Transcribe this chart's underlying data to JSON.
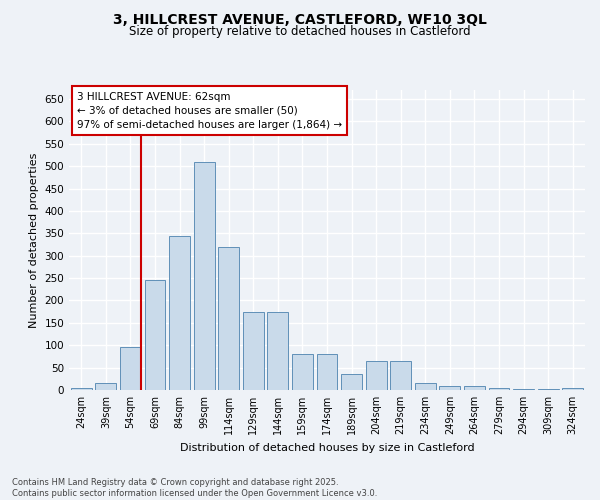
{
  "title_line1": "3, HILLCREST AVENUE, CASTLEFORD, WF10 3QL",
  "title_line2": "Size of property relative to detached houses in Castleford",
  "xlabel": "Distribution of detached houses by size in Castleford",
  "ylabel": "Number of detached properties",
  "categories": [
    "24sqm",
    "39sqm",
    "54sqm",
    "69sqm",
    "84sqm",
    "99sqm",
    "114sqm",
    "129sqm",
    "144sqm",
    "159sqm",
    "174sqm",
    "189sqm",
    "204sqm",
    "219sqm",
    "234sqm",
    "249sqm",
    "264sqm",
    "279sqm",
    "294sqm",
    "309sqm",
    "324sqm"
  ],
  "values": [
    5,
    15,
    95,
    245,
    345,
    510,
    320,
    175,
    175,
    80,
    80,
    35,
    65,
    65,
    15,
    10,
    8,
    5,
    2,
    2,
    5
  ],
  "bar_color": "#c9daea",
  "bar_edge_color": "#6090b8",
  "vline_color": "#cc0000",
  "annotation_text": "3 HILLCREST AVENUE: 62sqm\n← 3% of detached houses are smaller (50)\n97% of semi-detached houses are larger (1,864) →",
  "annotation_box_facecolor": "#ffffff",
  "annotation_box_edgecolor": "#cc0000",
  "ylim": [
    0,
    670
  ],
  "yticks": [
    0,
    50,
    100,
    150,
    200,
    250,
    300,
    350,
    400,
    450,
    500,
    550,
    600,
    650
  ],
  "bg_color": "#eef2f7",
  "grid_color": "#ffffff",
  "footer_line1": "Contains HM Land Registry data © Crown copyright and database right 2025.",
  "footer_line2": "Contains public sector information licensed under the Open Government Licence v3.0."
}
